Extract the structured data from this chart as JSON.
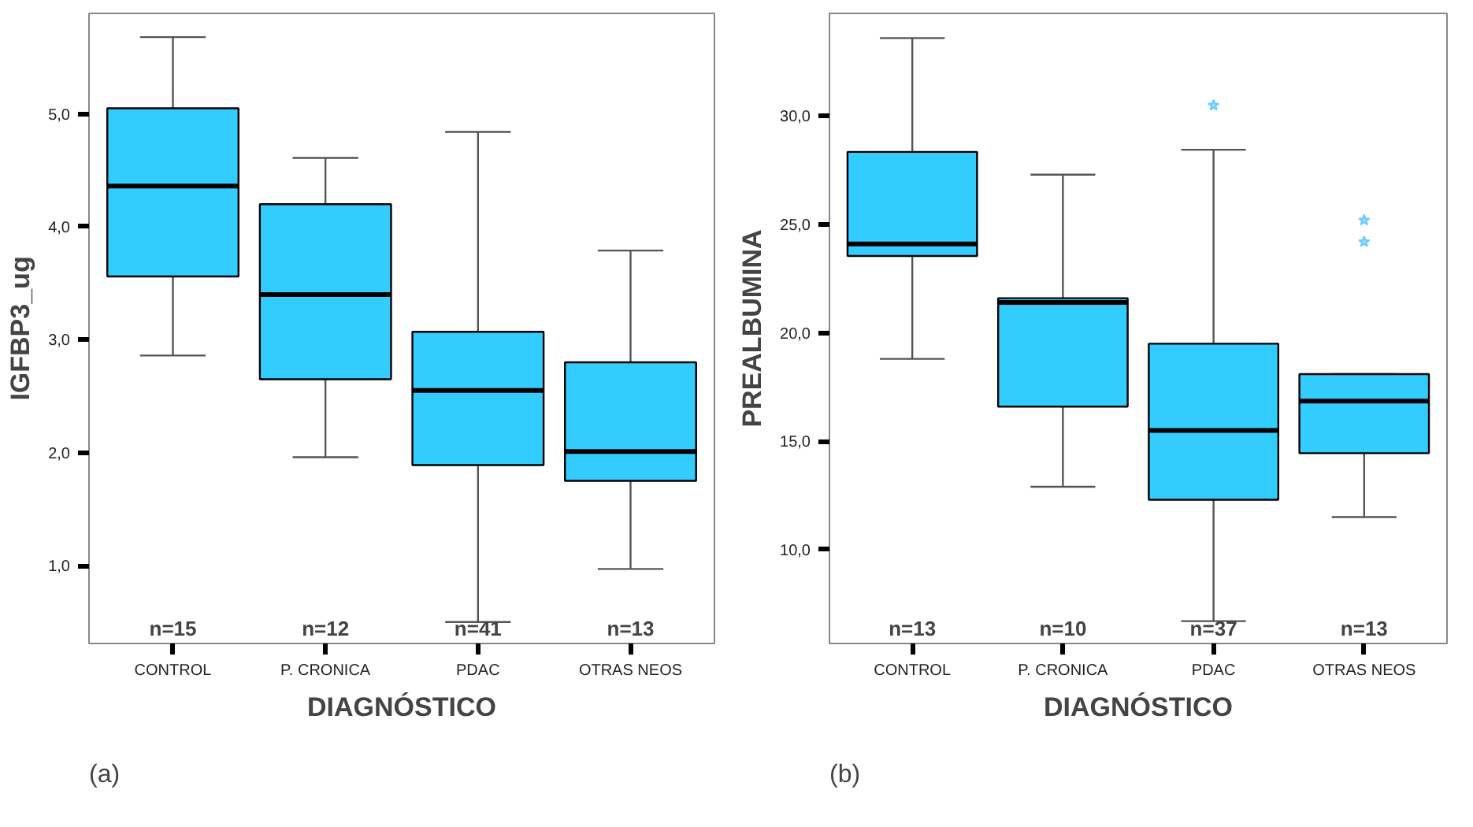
{
  "chart_data": [
    {
      "type": "box",
      "xlabel": "DIAGNÓSTICO",
      "ylabel": "IGFBP3_ug",
      "categories": [
        "CONTROL",
        "P. CRONICA",
        "PDAC",
        "OTRAS NEOS"
      ],
      "color": "#33ccff",
      "boxes": [
        {
          "low": 2.86,
          "q1": 3.56,
          "median": 4.36,
          "q3": 5.05,
          "high": 5.68
        },
        {
          "low": 1.96,
          "q1": 2.65,
          "median": 3.4,
          "q3": 4.2,
          "high": 4.61
        },
        {
          "low": 0.5,
          "q1": 1.89,
          "median": 2.55,
          "q3": 3.07,
          "high": 4.84
        },
        {
          "low": 0.97,
          "q1": 1.75,
          "median": 2.01,
          "q3": 2.8,
          "high": 3.79
        }
      ],
      "ylim": [
        0.31,
        5.89
      ],
      "yticks": [
        {
          "value": 1,
          "label": "1,0"
        },
        {
          "value": 2,
          "label": "2,0"
        },
        {
          "value": 3,
          "label": "3,0"
        },
        {
          "value": 4,
          "label": "4,0"
        },
        {
          "value": 5,
          "label": "5,0"
        }
      ],
      "grid": false,
      "marker": "star",
      "annotations": [
        "n=15",
        "n=12",
        "n=41",
        "n=13",
        "(a)"
      ]
    },
    {
      "type": "box",
      "xlabel": "DIAGNÓSTICO",
      "ylabel": "PREALBUMINA",
      "categories": [
        "CONTROL",
        "P. CRONICA",
        "PDAC",
        "OTRAS NEOS"
      ],
      "color": "#33ccff",
      "boxes": [
        {
          "low": 18.8,
          "q1": 23.55,
          "median": 24.1,
          "q3": 28.35,
          "high": 33.6
        },
        {
          "low": 12.9,
          "q1": 16.6,
          "median": 21.4,
          "q3": 21.6,
          "high": 27.3
        },
        {
          "low": 6.7,
          "q1": 12.3,
          "median": 15.5,
          "q3": 19.5,
          "high": 28.45,
          "outliers": [
            30.5
          ]
        },
        {
          "low": 11.5,
          "q1": 14.45,
          "median": 16.85,
          "q3": 18.1,
          "high": 18.1,
          "outliers": [
            25.2,
            24.2
          ]
        }
      ],
      "ylim": [
        5.67,
        34.74
      ],
      "yticks": [
        {
          "value": 10,
          "label": "10,0"
        },
        {
          "value": 15,
          "label": "15,0"
        },
        {
          "value": 20,
          "label": "20,0"
        },
        {
          "value": 25,
          "label": "25,0"
        },
        {
          "value": 30,
          "label": "30,0"
        }
      ],
      "grid": false,
      "marker": "star",
      "annotations": [
        "n=13",
        "n=10",
        "n=37",
        "n=13",
        "(b)"
      ]
    }
  ]
}
